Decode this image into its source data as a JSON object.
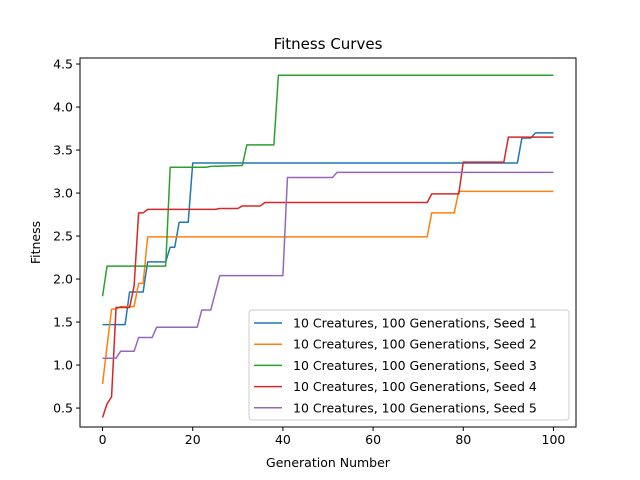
{
  "chart_data": {
    "type": "line",
    "title": "Fitness Curves",
    "xlabel": "Generation Number",
    "ylabel": "Fitness",
    "xlim": [
      -5,
      105
    ],
    "ylim": [
      0.28,
      4.57
    ],
    "xticks": [
      0,
      20,
      40,
      60,
      80,
      100
    ],
    "yticks": [
      0.5,
      1.0,
      1.5,
      2.0,
      2.5,
      3.0,
      3.5,
      4.0,
      4.5
    ],
    "ytick_labels": [
      "0.5",
      "1.0",
      "1.5",
      "2.0",
      "2.5",
      "3.0",
      "3.5",
      "4.0",
      "4.5"
    ],
    "grid": false,
    "legend_position": "lower-right",
    "series": [
      {
        "name": "10 Creatures, 100 Generations, Seed 1",
        "color": "#1f77b4",
        "points": [
          [
            0,
            1.47
          ],
          [
            5,
            1.47
          ],
          [
            6,
            1.85
          ],
          [
            7,
            1.85
          ],
          [
            8,
            1.85
          ],
          [
            9,
            1.85
          ],
          [
            10,
            2.2
          ],
          [
            14,
            2.2
          ],
          [
            15,
            2.37
          ],
          [
            16,
            2.37
          ],
          [
            17,
            2.66
          ],
          [
            19,
            2.66
          ],
          [
            20,
            3.35
          ],
          [
            92,
            3.35
          ],
          [
            93,
            3.64
          ],
          [
            95,
            3.64
          ],
          [
            96,
            3.7
          ],
          [
            100,
            3.7
          ]
        ]
      },
      {
        "name": "10 Creatures, 100 Generations, Seed 2",
        "color": "#ff7f0e",
        "points": [
          [
            0,
            0.78
          ],
          [
            1,
            1.22
          ],
          [
            2,
            1.65
          ],
          [
            3,
            1.65
          ],
          [
            4,
            1.68
          ],
          [
            7,
            1.68
          ],
          [
            8,
            1.95
          ],
          [
            9,
            1.95
          ],
          [
            10,
            2.49
          ],
          [
            72,
            2.49
          ],
          [
            73,
            2.77
          ],
          [
            78,
            2.77
          ],
          [
            79,
            3.02
          ],
          [
            100,
            3.02
          ]
        ]
      },
      {
        "name": "10 Creatures, 100 Generations, Seed 3",
        "color": "#2ca02c",
        "points": [
          [
            0,
            1.8
          ],
          [
            1,
            2.15
          ],
          [
            14,
            2.15
          ],
          [
            15,
            3.3
          ],
          [
            23,
            3.3
          ],
          [
            24,
            3.31
          ],
          [
            31,
            3.32
          ],
          [
            32,
            3.56
          ],
          [
            38,
            3.56
          ],
          [
            39,
            4.37
          ],
          [
            100,
            4.37
          ]
        ]
      },
      {
        "name": "10 Creatures, 100 Generations, Seed 4",
        "color": "#d62728",
        "points": [
          [
            0,
            0.39
          ],
          [
            1,
            0.55
          ],
          [
            2,
            0.63
          ],
          [
            3,
            1.67
          ],
          [
            6,
            1.67
          ],
          [
            7,
            1.92
          ],
          [
            8,
            2.77
          ],
          [
            9,
            2.77
          ],
          [
            10,
            2.81
          ],
          [
            25,
            2.81
          ],
          [
            26,
            2.82
          ],
          [
            30,
            2.82
          ],
          [
            31,
            2.85
          ],
          [
            35,
            2.85
          ],
          [
            36,
            2.89
          ],
          [
            72,
            2.89
          ],
          [
            73,
            2.99
          ],
          [
            79,
            2.99
          ],
          [
            80,
            3.36
          ],
          [
            89,
            3.36
          ],
          [
            90,
            3.65
          ],
          [
            100,
            3.65
          ]
        ]
      },
      {
        "name": "10 Creatures, 100 Generations, Seed 5",
        "color": "#9467bd",
        "points": [
          [
            0,
            1.08
          ],
          [
            3,
            1.08
          ],
          [
            4,
            1.16
          ],
          [
            7,
            1.16
          ],
          [
            8,
            1.32
          ],
          [
            11,
            1.32
          ],
          [
            12,
            1.44
          ],
          [
            21,
            1.44
          ],
          [
            22,
            1.64
          ],
          [
            24,
            1.64
          ],
          [
            26,
            2.04
          ],
          [
            40,
            2.04
          ],
          [
            41,
            3.18
          ],
          [
            51,
            3.18
          ],
          [
            52,
            3.24
          ],
          [
            100,
            3.24
          ]
        ]
      }
    ]
  }
}
